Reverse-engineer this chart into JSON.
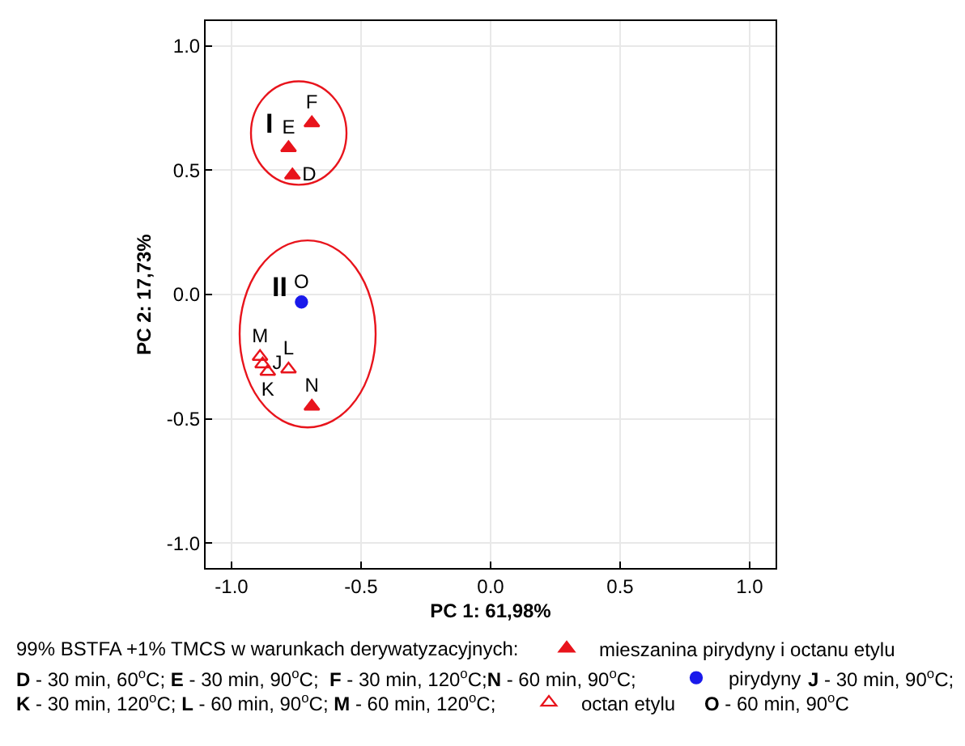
{
  "chart_data": {
    "type": "scatter",
    "xlabel": "PC 1: 61,98%",
    "ylabel": "PC 2: 17,73%",
    "xlim": [
      -1.1,
      1.1
    ],
    "ylim": [
      -1.1,
      1.1
    ],
    "xticks": [
      {
        "value": -1,
        "label": "-1.0"
      },
      {
        "value": -0.5,
        "label": "-0.5"
      },
      {
        "value": 0,
        "label": "0.0"
      },
      {
        "value": 0.5,
        "label": "0.5"
      },
      {
        "value": 1,
        "label": "1.0"
      }
    ],
    "yticks": [
      {
        "value": -1,
        "label": "-1.0"
      },
      {
        "value": -0.5,
        "label": "-0.5"
      },
      {
        "value": 0,
        "label": "0.0"
      },
      {
        "value": 0.5,
        "label": "0.5"
      },
      {
        "value": 1,
        "label": "1.0"
      }
    ],
    "grid": true,
    "legend": "bottom",
    "series": [
      {
        "name": "mieszanina pirydyny i octanu etylu",
        "color": "#e8141c",
        "marker": "triangle",
        "x": [
          -0.765,
          -0.78,
          -0.69,
          -0.69
        ],
        "values": [
          0.48,
          0.59,
          0.69,
          -0.45
        ],
        "value_labels": [
          "D",
          "E",
          "F",
          "N"
        ]
      },
      {
        "name": "pirydyny",
        "color": "#1a1aeb",
        "marker": "circle",
        "x": [
          -0.73
        ],
        "values": [
          -0.03
        ],
        "value_labels": [
          "O"
        ]
      },
      {
        "name": "octan etylu",
        "color": "#e8141c",
        "marker": "triangle-open",
        "x": [
          -0.89,
          -0.88,
          -0.86,
          -0.78
        ],
        "values": [
          -0.25,
          -0.28,
          -0.31,
          -0.3
        ],
        "value_labels": [
          "M",
          "J",
          "K",
          "L"
        ]
      }
    ],
    "annotations": [
      "99% BSTFA +1% TMCS w warunkach derywatyzacyjnych:",
      "D - 30 min, 60$^{o}$C; E - 30 min, 90$^{o}$C;  F - 30 min, 120$^{o}$C;N - 60 min, 90$^{o}$C;",
      "J - 30 min, 90$^{o}$C;",
      "K - 30 min, 120$^{o}$C; L - 60 min, 90$^{o}$C; M - 60 min, 120$^{o}$C;",
      "O - 60 min, 90$^{o}$C",
      "I",
      "II"
    ]
  }
}
